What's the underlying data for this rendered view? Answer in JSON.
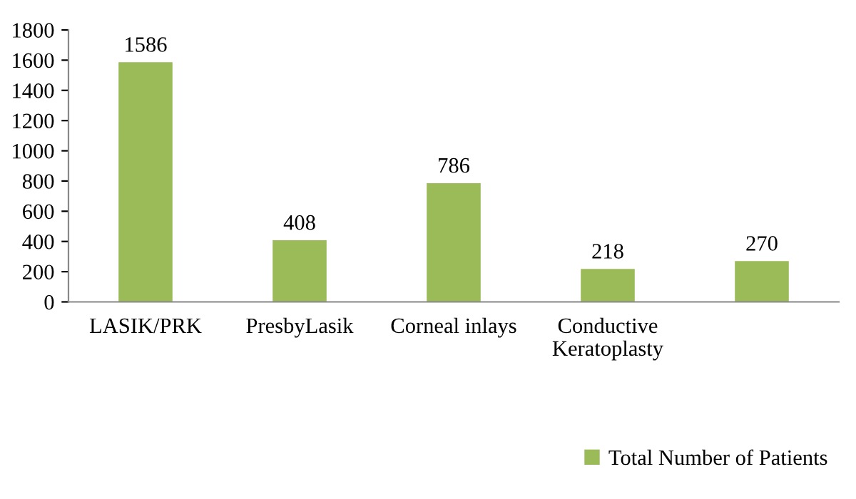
{
  "chart_data": {
    "type": "bar",
    "categories": [
      "LASIK/PRK",
      "PresbyLasik",
      "Corneal inlays",
      "Conductive\nKeratoplasty",
      null
    ],
    "series": [
      {
        "name": "Total Number of Patients",
        "color": "#9bbb59",
        "values": [
          1586,
          408,
          786,
          218,
          270
        ]
      }
    ],
    "ylim": [
      0,
      1800
    ],
    "yticks": [
      0,
      200,
      400,
      600,
      800,
      1000,
      1200,
      1400,
      1600,
      1800
    ],
    "data_labels": true,
    "grid": false,
    "legend": "bottom right"
  }
}
